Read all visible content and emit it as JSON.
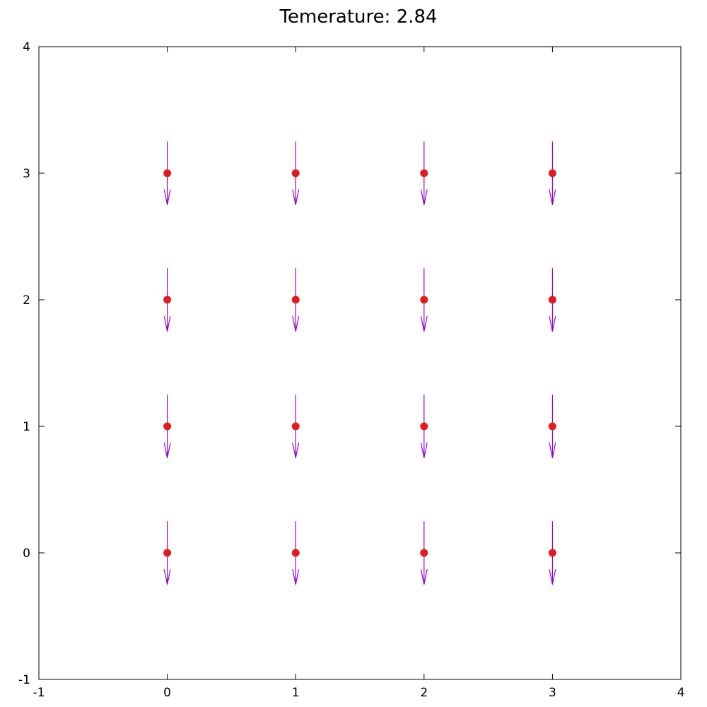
{
  "chart_data": {
    "type": "scatter",
    "title": "Temerature: 2.84",
    "xlabel": "",
    "ylabel": "",
    "xlim": [
      -1,
      4
    ],
    "ylim": [
      -1,
      4
    ],
    "xticks": [
      -1,
      0,
      1,
      2,
      3,
      4
    ],
    "yticks": [
      -1,
      0,
      1,
      2,
      3,
      4
    ],
    "grid": false,
    "points": [
      {
        "x": 0,
        "y": 0
      },
      {
        "x": 1,
        "y": 0
      },
      {
        "x": 2,
        "y": 0
      },
      {
        "x": 3,
        "y": 0
      },
      {
        "x": 0,
        "y": 1
      },
      {
        "x": 1,
        "y": 1
      },
      {
        "x": 2,
        "y": 1
      },
      {
        "x": 3,
        "y": 1
      },
      {
        "x": 0,
        "y": 2
      },
      {
        "x": 1,
        "y": 2
      },
      {
        "x": 2,
        "y": 2
      },
      {
        "x": 3,
        "y": 2
      },
      {
        "x": 0,
        "y": 3
      },
      {
        "x": 1,
        "y": 3
      },
      {
        "x": 2,
        "y": 3
      },
      {
        "x": 3,
        "y": 3
      }
    ],
    "arrows": [
      {
        "x": 0,
        "y": 0,
        "dx": 0,
        "dy": -0.5
      },
      {
        "x": 1,
        "y": 0,
        "dx": 0,
        "dy": -0.5
      },
      {
        "x": 2,
        "y": 0,
        "dx": 0,
        "dy": -0.5
      },
      {
        "x": 3,
        "y": 0,
        "dx": 0,
        "dy": -0.5
      },
      {
        "x": 0,
        "y": 1,
        "dx": 0,
        "dy": -0.5
      },
      {
        "x": 1,
        "y": 1,
        "dx": 0,
        "dy": -0.5
      },
      {
        "x": 2,
        "y": 1,
        "dx": 0,
        "dy": -0.5
      },
      {
        "x": 3,
        "y": 1,
        "dx": 0,
        "dy": -0.5
      },
      {
        "x": 0,
        "y": 2,
        "dx": 0,
        "dy": -0.5
      },
      {
        "x": 1,
        "y": 2,
        "dx": 0,
        "dy": -0.5
      },
      {
        "x": 2,
        "y": 2,
        "dx": 0,
        "dy": -0.5
      },
      {
        "x": 3,
        "y": 2,
        "dx": 0,
        "dy": -0.5
      },
      {
        "x": 0,
        "y": 3,
        "dx": 0,
        "dy": -0.5
      },
      {
        "x": 1,
        "y": 3,
        "dx": 0,
        "dy": -0.5
      },
      {
        "x": 2,
        "y": 3,
        "dx": 0,
        "dy": -0.5
      },
      {
        "x": 3,
        "y": 3,
        "dx": 0,
        "dy": -0.5
      }
    ],
    "colors": {
      "point": "#e41a1c",
      "arrow": "#9400d3",
      "axis": "#000000"
    }
  }
}
